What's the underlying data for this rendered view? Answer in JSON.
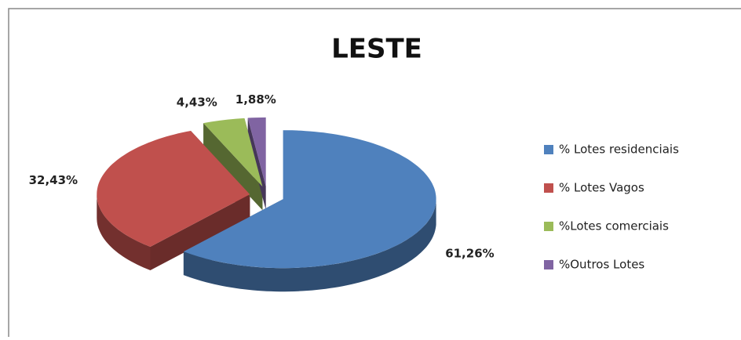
{
  "chart_data": {
    "type": "pie",
    "title": "LESTE",
    "categories": [
      "% Lotes residenciais",
      "% Lotes Vagos",
      "%Lotes comerciais",
      "%Outros Lotes"
    ],
    "values": [
      61.26,
      32.43,
      4.43,
      1.88
    ],
    "value_labels": [
      "61,26%",
      "32,43%",
      "4,43%",
      "1,88%"
    ],
    "colors": [
      "#4f81bd",
      "#c0504d",
      "#9bbb59",
      "#8064a2"
    ],
    "legend": "right"
  }
}
